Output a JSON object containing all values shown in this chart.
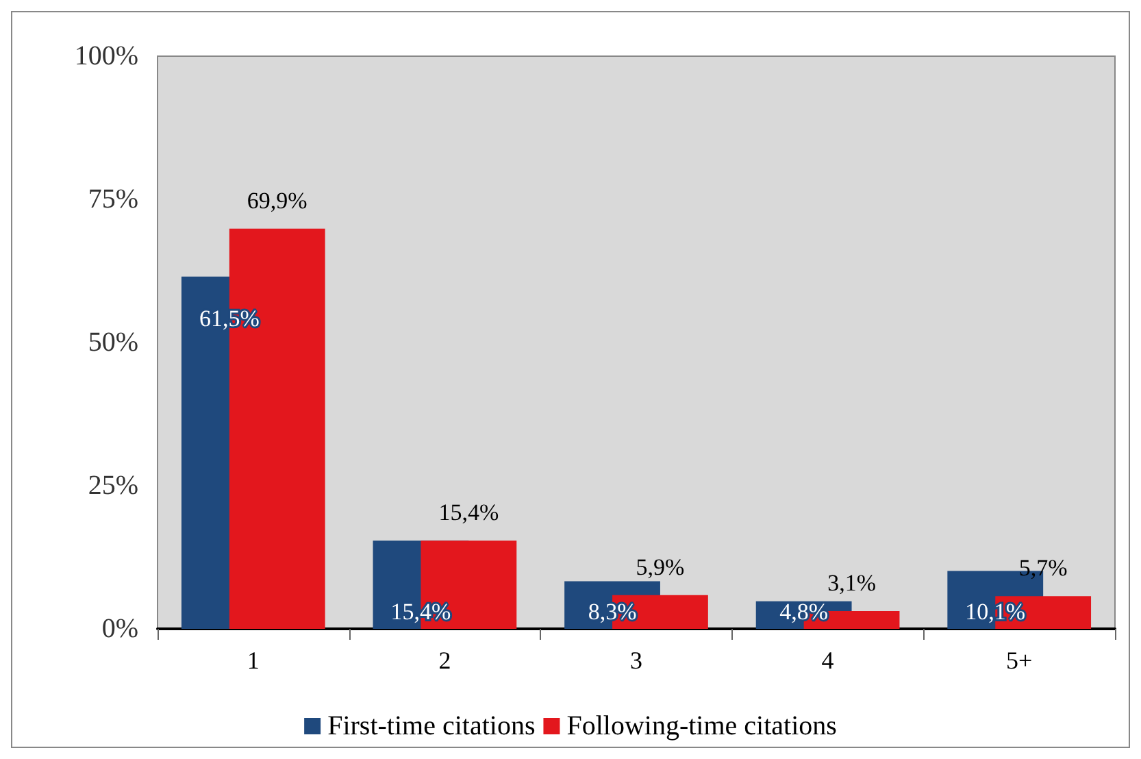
{
  "chart_data": {
    "type": "bar",
    "categories": [
      "1",
      "2",
      "3",
      "4",
      "5+"
    ],
    "series": [
      {
        "name": "First-time citations",
        "color": "#1f497d",
        "values": [
          61.5,
          15.4,
          8.3,
          4.8,
          10.1
        ],
        "value_labels": [
          "61,5%",
          "15,4%",
          "8,3%",
          "4,8%",
          "10,1%"
        ]
      },
      {
        "name": "Following-time citations",
        "color": "#e3171d",
        "values": [
          69.9,
          15.4,
          5.9,
          3.1,
          5.7
        ],
        "value_labels": [
          "69,9%",
          "15,4%",
          "5,9%",
          "3,1%",
          "5,7%"
        ]
      }
    ],
    "ylim": [
      0,
      100
    ],
    "yticks": [
      {
        "value": 0,
        "label": "0%"
      },
      {
        "value": 25,
        "label": "25%"
      },
      {
        "value": 50,
        "label": "50%"
      },
      {
        "value": 75,
        "label": "75%"
      },
      {
        "value": 100,
        "label": "100%"
      }
    ],
    "legend": "bottom"
  }
}
